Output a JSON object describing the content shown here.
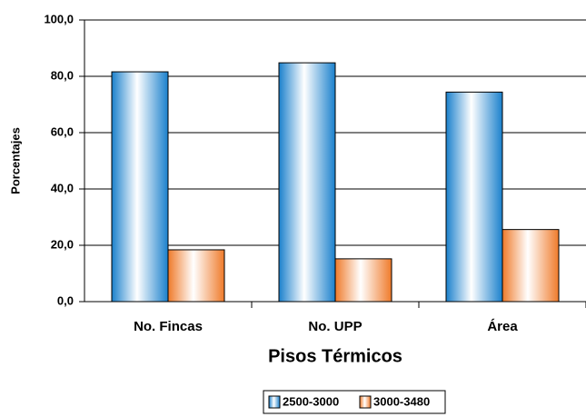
{
  "chart_data": {
    "type": "bar",
    "y_label": "Porcentajes",
    "x_label": "Pisos Térmicos",
    "categories": [
      "No. Fincas",
      "No. UPP",
      "Área"
    ],
    "series": [
      {
        "name": "2500-3000",
        "color": "#1a80cc",
        "values": [
          81.6,
          84.8,
          74.4
        ]
      },
      {
        "name": "3000-3480",
        "color": "#ef7a2a",
        "values": [
          18.4,
          15.2,
          25.6
        ]
      }
    ],
    "ylim": [
      0,
      100
    ],
    "yticks": [
      {
        "value": 0,
        "label": "0,0"
      },
      {
        "value": 20,
        "label": "20,0"
      },
      {
        "value": 40,
        "label": "40,0"
      },
      {
        "value": 60,
        "label": "60,0"
      },
      {
        "value": 80,
        "label": "80,0"
      },
      {
        "value": 100,
        "label": "100,0"
      }
    ],
    "grid": true
  }
}
